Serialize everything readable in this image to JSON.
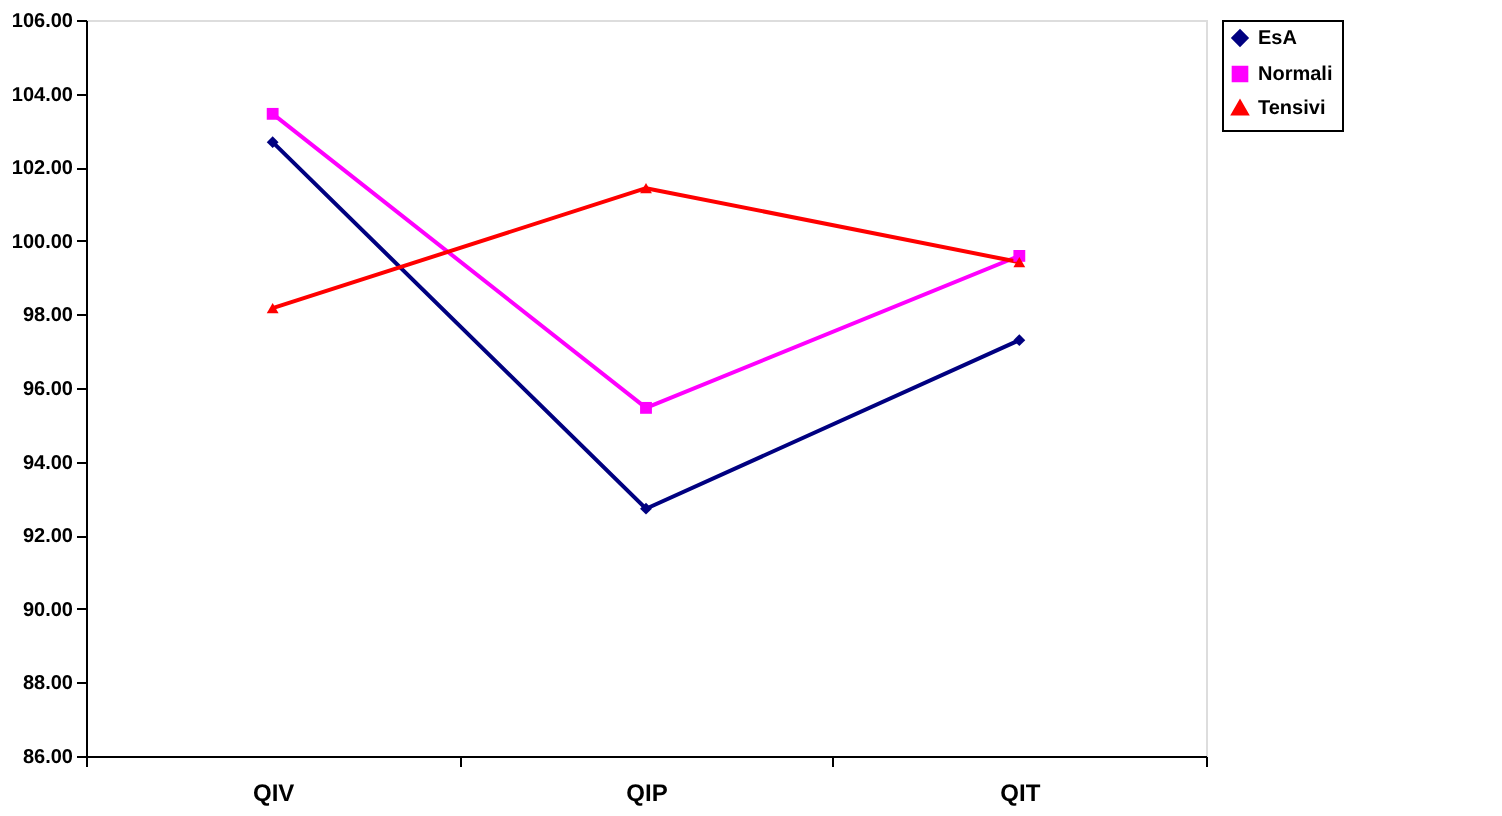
{
  "chart_data": {
    "type": "line",
    "categories": [
      "QIV",
      "QIP",
      "QIT"
    ],
    "series": [
      {
        "name": "EsA",
        "color": "#000080",
        "marker": "diamond",
        "values": [
          102.68,
          92.72,
          97.3
        ]
      },
      {
        "name": "Normali",
        "color": "#ff00ff",
        "marker": "square",
        "values": [
          103.45,
          95.46,
          99.59
        ]
      },
      {
        "name": "Tensivi",
        "color": "#ff0000",
        "marker": "triangle",
        "values": [
          98.17,
          101.43,
          99.42
        ]
      }
    ],
    "ylim": [
      86,
      106
    ],
    "yticks": [
      {
        "value": 86,
        "label": "86.00"
      },
      {
        "value": 88,
        "label": "88.00"
      },
      {
        "value": 90,
        "label": "90.00"
      },
      {
        "value": 92,
        "label": "92.00"
      },
      {
        "value": 94,
        "label": "94.00"
      },
      {
        "value": 96,
        "label": "96.00"
      },
      {
        "value": 98,
        "label": "98.00"
      },
      {
        "value": 100,
        "label": "100.00"
      },
      {
        "value": 102,
        "label": "102.00"
      },
      {
        "value": 104,
        "label": "104.00"
      },
      {
        "value": 106,
        "label": "106.00"
      }
    ],
    "grid": false,
    "legend": "right",
    "line_style": "solid"
  }
}
